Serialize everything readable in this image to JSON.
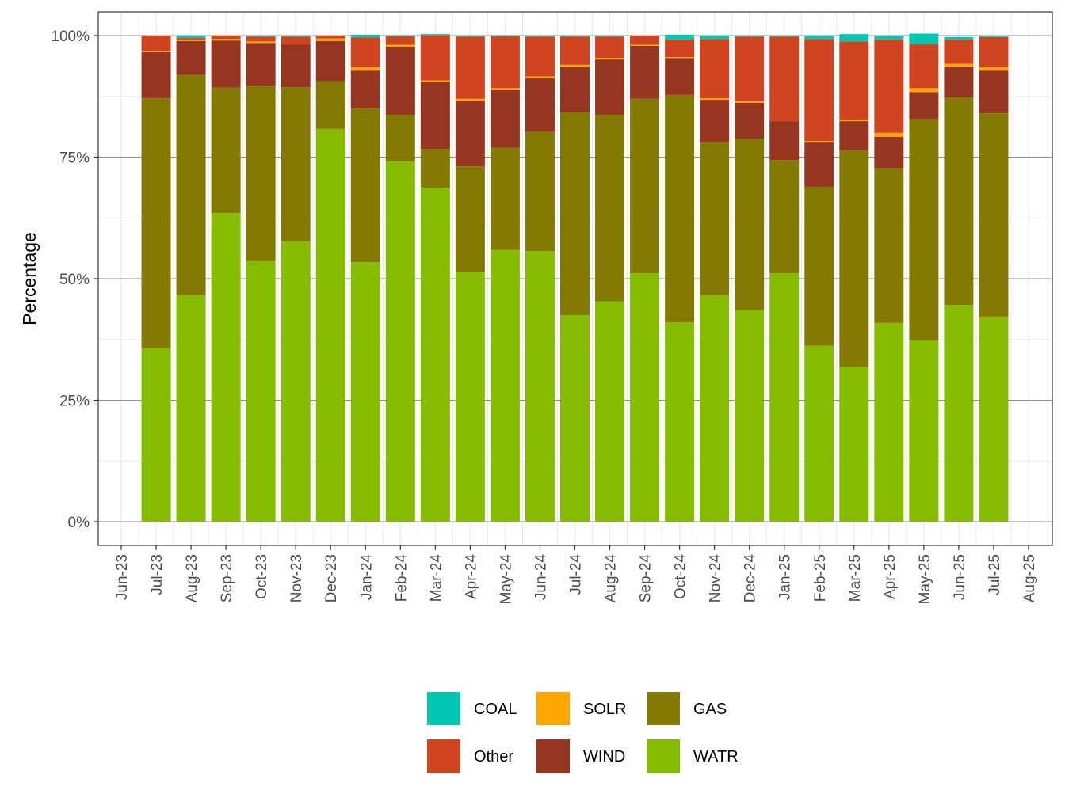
{
  "chart_data": {
    "type": "bar",
    "stacked": true,
    "title": "",
    "xlabel": "",
    "ylabel": "Percentage",
    "ylim": [
      0,
      100
    ],
    "y_ticks": [
      "0%",
      "25%",
      "50%",
      "75%",
      "100%"
    ],
    "y_tick_values": [
      0,
      25,
      50,
      75,
      100
    ],
    "x_tick_labels": [
      "Jun-23",
      "Jul-23",
      "Aug-23",
      "Sep-23",
      "Oct-23",
      "Nov-23",
      "Dec-23",
      "Jan-24",
      "Feb-24",
      "Mar-24",
      "Apr-24",
      "May-24",
      "Jun-24",
      "Jul-24",
      "Aug-24",
      "Sep-24",
      "Oct-24",
      "Nov-24",
      "Dec-24",
      "Jan-25",
      "Feb-25",
      "Mar-25",
      "Apr-25",
      "May-25",
      "Jun-25",
      "Jul-25",
      "Aug-25"
    ],
    "categories": [
      "Jul-23",
      "Aug-23",
      "Sep-23",
      "Oct-23",
      "Nov-23",
      "Dec-23",
      "Jan-24",
      "Feb-24",
      "Mar-24",
      "Apr-24",
      "May-24",
      "Jun-24",
      "Jul-24",
      "Aug-24",
      "Sep-24",
      "Oct-24",
      "Nov-24",
      "Dec-24",
      "Jan-25",
      "Feb-25",
      "Mar-25",
      "Apr-25",
      "May-25",
      "Jun-25",
      "Jul-25"
    ],
    "grid": true,
    "legend_position": "bottom",
    "stack_order_bottom_to_top": [
      "WATR",
      "GAS",
      "WIND",
      "SOLR",
      "Other",
      "COAL"
    ],
    "series": [
      {
        "name": "WATR",
        "color": "#86bc00",
        "values": [
          35.7,
          46.6,
          63.5,
          53.6,
          57.8,
          80.8,
          53.4,
          74.1,
          68.7,
          51.3,
          55.9,
          55.7,
          42.5,
          45.3,
          51.1,
          41.0,
          46.6,
          43.5,
          51.1,
          36.2,
          31.9,
          40.9,
          37.3,
          44.6,
          42.2
        ]
      },
      {
        "name": "GAS",
        "color": "#847a03",
        "values": [
          51.4,
          45.3,
          25.8,
          36.1,
          31.6,
          9.8,
          31.6,
          9.6,
          8.0,
          21.8,
          21.0,
          24.6,
          41.7,
          38.4,
          35.9,
          46.8,
          31.4,
          35.3,
          23.3,
          32.7,
          44.5,
          31.9,
          45.6,
          42.7,
          41.8
        ]
      },
      {
        "name": "WIND",
        "color": "#963621",
        "values": [
          9.5,
          7.0,
          9.7,
          8.8,
          8.8,
          8.3,
          7.8,
          14.0,
          13.7,
          13.5,
          11.9,
          10.9,
          9.4,
          11.4,
          10.9,
          7.6,
          8.8,
          7.4,
          8.0,
          9.1,
          6.0,
          6.4,
          5.5,
          6.3,
          8.8
        ]
      },
      {
        "name": "SOLR",
        "color": "#ffa500",
        "values": [
          0.3,
          0.3,
          0.3,
          0.3,
          0.0,
          0.5,
          0.7,
          0.4,
          0.4,
          0.4,
          0.4,
          0.4,
          0.4,
          0.3,
          0.2,
          0.2,
          0.3,
          0.3,
          0.0,
          0.3,
          0.3,
          0.8,
          0.8,
          0.6,
          0.7
        ]
      },
      {
        "name": "Other",
        "color": "#d04520",
        "values": [
          3.1,
          0.3,
          0.7,
          1.0,
          1.6,
          0.6,
          6.1,
          1.8,
          9.3,
          12.8,
          10.7,
          8.2,
          5.8,
          4.4,
          1.9,
          3.6,
          12.2,
          13.3,
          17.4,
          21.0,
          16.1,
          19.2,
          9.0,
          5.0,
          6.2
        ]
      },
      {
        "name": "COAL",
        "color": "#00c7b2",
        "values": [
          0.0,
          0.5,
          0.0,
          0.2,
          0.2,
          0.0,
          0.6,
          0.2,
          0.2,
          0.2,
          0.2,
          0.2,
          0.2,
          0.2,
          0.0,
          1.0,
          0.7,
          0.2,
          0.2,
          0.7,
          1.5,
          0.7,
          2.2,
          0.5,
          0.3
        ]
      }
    ],
    "legend": [
      {
        "name": "COAL",
        "color": "#00c7b2"
      },
      {
        "name": "SOLR",
        "color": "#ffa500"
      },
      {
        "name": "GAS",
        "color": "#847a03"
      },
      {
        "name": "Other",
        "color": "#d04520"
      },
      {
        "name": "WIND",
        "color": "#963621"
      },
      {
        "name": "WATR",
        "color": "#86bc00"
      }
    ]
  }
}
